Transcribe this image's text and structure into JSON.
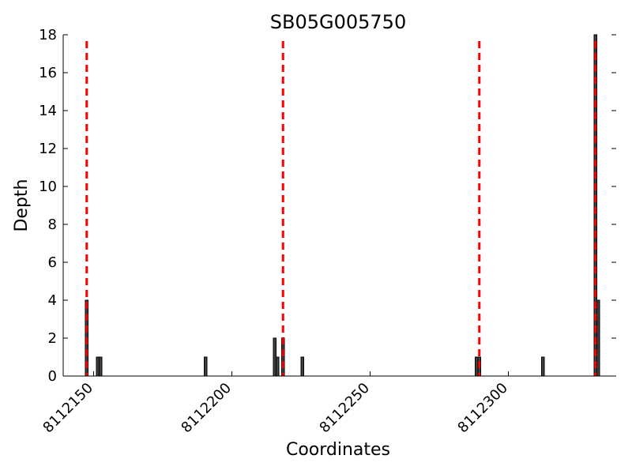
{
  "chart_data": {
    "type": "bar",
    "title": "SB05G005750",
    "xlabel": "Coordinates",
    "ylabel": "Depth",
    "xlim": [
      8112139,
      8112339
    ],
    "ylim": [
      0,
      18
    ],
    "xticks": [
      8112150,
      8112200,
      8112250,
      8112300
    ],
    "yticks": [
      0,
      2,
      4,
      6,
      8,
      10,
      12,
      14,
      16,
      18
    ],
    "bar_width": 1,
    "bar_color": "#404040",
    "marker_color": "#ff0000",
    "bars": [
      {
        "x": 8112147,
        "y": 4
      },
      {
        "x": 8112151,
        "y": 1
      },
      {
        "x": 8112152,
        "y": 1
      },
      {
        "x": 8112190,
        "y": 1
      },
      {
        "x": 8112215,
        "y": 2
      },
      {
        "x": 8112216,
        "y": 1
      },
      {
        "x": 8112218,
        "y": 2
      },
      {
        "x": 8112225,
        "y": 1
      },
      {
        "x": 8112288,
        "y": 1
      },
      {
        "x": 8112289,
        "y": 1
      },
      {
        "x": 8112312,
        "y": 1
      },
      {
        "x": 8112331,
        "y": 18
      },
      {
        "x": 8112332,
        "y": 4
      }
    ],
    "markers": [
      8112147.5,
      8112218.5,
      8112289.5,
      8112331.5
    ]
  }
}
